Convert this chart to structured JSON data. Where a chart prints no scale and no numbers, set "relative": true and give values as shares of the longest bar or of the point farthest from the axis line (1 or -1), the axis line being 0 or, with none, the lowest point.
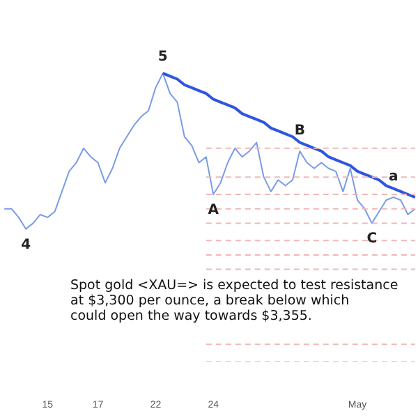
{
  "chart_data": {
    "type": "line",
    "relative": true,
    "categories": [
      null,
      null,
      null,
      null,
      null,
      null,
      "15",
      null,
      null,
      null,
      null,
      null,
      null,
      "17",
      null,
      null,
      null,
      null,
      null,
      null,
      null,
      "22",
      null,
      null,
      null,
      null,
      null,
      null,
      null,
      "24",
      null,
      null,
      null,
      null,
      null,
      null,
      null,
      null,
      null,
      null,
      null,
      null,
      null,
      null,
      null,
      null,
      null,
      null,
      null,
      "May",
      null,
      null,
      null,
      null,
      null,
      null,
      null,
      null
    ],
    "grid": false,
    "marker": "none",
    "series": [
      {
        "color": "#7a9be8",
        "line_style": "solid",
        "values": [
          0.53,
          0.53,
          0.5,
          0.46,
          0.48,
          0.51,
          0.5,
          0.52,
          0.59,
          0.66,
          0.69,
          0.74,
          0.71,
          0.69,
          0.62,
          0.67,
          0.74,
          0.78,
          0.82,
          0.85,
          0.87,
          0.95,
          1,
          0.93,
          0.9,
          0.78,
          0.75,
          0.69,
          0.71,
          0.58,
          0.62,
          0.69,
          0.74,
          0.71,
          0.73,
          0.76,
          0.64,
          0.59,
          0.63,
          0.61,
          0.63,
          0.73,
          0.69,
          0.67,
          0.69,
          0.67,
          0.66,
          0.59,
          0.67,
          0.56,
          0.53,
          0.48,
          0.52,
          0.56,
          0.57,
          0.56,
          0.51,
          0.53
        ]
      },
      {
        "color": "#2f55e0",
        "line_style": "solid",
        "values": [
          null,
          null,
          null,
          null,
          null,
          null,
          null,
          null,
          null,
          null,
          null,
          null,
          null,
          null,
          null,
          null,
          null,
          null,
          null,
          null,
          null,
          null,
          1,
          0.99,
          0.98,
          0.96,
          0.95,
          0.94,
          0.93,
          0.91,
          0.9,
          0.89,
          0.88,
          0.86,
          0.85,
          0.84,
          0.83,
          0.81,
          0.8,
          0.79,
          0.78,
          0.76,
          0.75,
          0.74,
          0.73,
          0.71,
          0.7,
          0.69,
          0.68,
          0.66,
          0.65,
          0.64,
          0.63,
          0.61,
          0.6,
          0.59,
          0.58,
          0.57
        ]
      },
      {
        "color": "#f0b8b8",
        "line_style": "dashed",
        "values": [
          null,
          null,
          null,
          null,
          null,
          null,
          null,
          null,
          null,
          null,
          null,
          null,
          null,
          null,
          null,
          null,
          null,
          null,
          null,
          null,
          null,
          null,
          null,
          null,
          null,
          null,
          null,
          null,
          0.74,
          0.74,
          0.74,
          0.74,
          0.74,
          0.74,
          0.74,
          0.74,
          0.74,
          0.74,
          0.74,
          0.74,
          0.74,
          0.74,
          0.74,
          0.74,
          0.74,
          0.74,
          0.74,
          0.74,
          0.74,
          0.74,
          0.74,
          0.74,
          0.74,
          0.74,
          0.74,
          0.74,
          0.74,
          0.74
        ]
      },
      {
        "color": "#f0b8b8",
        "line_style": "dashed",
        "values": [
          null,
          null,
          null,
          null,
          null,
          null,
          null,
          null,
          null,
          null,
          null,
          null,
          null,
          null,
          null,
          null,
          null,
          null,
          null,
          null,
          null,
          null,
          null,
          null,
          null,
          null,
          null,
          null,
          0.64,
          0.64,
          0.64,
          0.64,
          0.64,
          0.64,
          0.64,
          0.64,
          0.64,
          0.64,
          0.64,
          0.64,
          0.64,
          0.64,
          0.64,
          0.64,
          0.64,
          0.64,
          0.64,
          0.64,
          0.64,
          0.64,
          0.64,
          0.64,
          0.64,
          0.64,
          0.64,
          0.64,
          0.64,
          0.64
        ]
      },
      {
        "color": "#f0b8b8",
        "line_style": "dashed",
        "values": [
          null,
          null,
          null,
          null,
          null,
          null,
          null,
          null,
          null,
          null,
          null,
          null,
          null,
          null,
          null,
          null,
          null,
          null,
          null,
          null,
          null,
          null,
          null,
          null,
          null,
          null,
          null,
          null,
          0.58,
          0.58,
          0.58,
          0.58,
          0.58,
          0.58,
          0.58,
          0.58,
          0.58,
          0.58,
          0.58,
          0.58,
          0.58,
          0.58,
          0.58,
          0.58,
          0.58,
          0.58,
          0.58,
          0.58,
          0.58,
          0.58,
          0.58,
          0.58,
          0.58,
          0.58,
          0.58,
          0.58,
          0.58,
          0.58
        ]
      },
      {
        "color": "#f0b8b8",
        "line_style": "dashed",
        "values": [
          null,
          null,
          null,
          null,
          null,
          null,
          null,
          null,
          null,
          null,
          null,
          null,
          null,
          null,
          null,
          null,
          null,
          null,
          null,
          null,
          null,
          null,
          null,
          null,
          null,
          null,
          null,
          null,
          0.53,
          0.53,
          0.53,
          0.53,
          0.53,
          0.53,
          0.53,
          0.53,
          0.53,
          0.53,
          0.53,
          0.53,
          0.53,
          0.53,
          0.53,
          0.53,
          0.53,
          0.53,
          0.53,
          0.53,
          0.53,
          0.53,
          0.53,
          0.53,
          0.53,
          0.53,
          0.53,
          0.53,
          0.53,
          0.53
        ]
      },
      {
        "color": "#f0b8b8",
        "line_style": "dashed",
        "values": [
          null,
          null,
          null,
          null,
          null,
          null,
          null,
          null,
          null,
          null,
          null,
          null,
          null,
          null,
          null,
          null,
          null,
          null,
          null,
          null,
          null,
          null,
          null,
          null,
          null,
          null,
          null,
          null,
          0.48,
          0.48,
          0.48,
          0.48,
          0.48,
          0.48,
          0.48,
          0.48,
          0.48,
          0.48,
          0.48,
          0.48,
          0.48,
          0.48,
          0.48,
          0.48,
          0.48,
          0.48,
          0.48,
          0.48,
          0.48,
          0.48,
          0.48,
          0.48,
          0.48,
          0.48,
          0.48,
          0.48,
          0.48,
          0.48
        ]
      },
      {
        "color": "#f0b8b8",
        "line_style": "dashed",
        "values": [
          null,
          null,
          null,
          null,
          null,
          null,
          null,
          null,
          null,
          null,
          null,
          null,
          null,
          null,
          null,
          null,
          null,
          null,
          null,
          null,
          null,
          null,
          null,
          null,
          null,
          null,
          null,
          null,
          0.42,
          0.42,
          0.42,
          0.42,
          0.42,
          0.42,
          0.42,
          0.42,
          0.42,
          0.42,
          0.42,
          0.42,
          0.42,
          0.42,
          0.42,
          0.42,
          0.42,
          0.42,
          0.42,
          0.42,
          0.42,
          0.42,
          0.42,
          0.42,
          0.42,
          0.42,
          0.42,
          0.42,
          0.42,
          0.42
        ]
      },
      {
        "color": "#f0b8b8",
        "line_style": "dashed",
        "values": [
          null,
          null,
          null,
          null,
          null,
          null,
          null,
          null,
          null,
          null,
          null,
          null,
          null,
          null,
          null,
          null,
          null,
          null,
          null,
          null,
          null,
          null,
          null,
          null,
          null,
          null,
          null,
          null,
          0.37,
          0.37,
          0.37,
          0.37,
          0.37,
          0.37,
          0.37,
          0.37,
          0.37,
          0.37,
          0.37,
          0.37,
          0.37,
          0.37,
          0.37,
          0.37,
          0.37,
          0.37,
          0.37,
          0.37,
          0.37,
          0.37,
          0.37,
          0.37,
          0.37,
          0.37,
          0.37,
          0.37,
          0.37,
          0.37
        ]
      },
      {
        "color": "#f0b8b8",
        "line_style": "dashed",
        "values": [
          null,
          null,
          null,
          null,
          null,
          null,
          null,
          null,
          null,
          null,
          null,
          null,
          null,
          null,
          null,
          null,
          null,
          null,
          null,
          null,
          null,
          null,
          null,
          null,
          null,
          null,
          null,
          null,
          0.32,
          0.32,
          0.32,
          0.32,
          0.32,
          0.32,
          0.32,
          0.32,
          0.32,
          0.32,
          0.32,
          0.32,
          0.32,
          0.32,
          0.32,
          0.32,
          0.32,
          0.32,
          0.32,
          0.32,
          0.32,
          0.32,
          0.32,
          0.32,
          0.32,
          0.32,
          0.32,
          0.32,
          0.32,
          0.32
        ]
      },
      {
        "color": "#f0b8b8",
        "line_style": "dashed",
        "values": [
          null,
          null,
          null,
          null,
          null,
          null,
          null,
          null,
          null,
          null,
          null,
          null,
          null,
          null,
          null,
          null,
          null,
          null,
          null,
          null,
          null,
          null,
          null,
          null,
          null,
          null,
          null,
          null,
          0.06,
          0.06,
          0.06,
          0.06,
          0.06,
          0.06,
          0.06,
          0.06,
          0.06,
          0.06,
          0.06,
          0.06,
          0.06,
          0.06,
          0.06,
          0.06,
          0.06,
          0.06,
          0.06,
          0.06,
          0.06,
          0.06,
          0.06,
          0.06,
          0.06,
          0.06,
          0.06,
          0.06,
          0.06,
          0.06
        ]
      },
      {
        "color": "#f0b8b8",
        "line_style": "dashed",
        "values": [
          null,
          null,
          null,
          null,
          null,
          null,
          null,
          null,
          null,
          null,
          null,
          null,
          null,
          null,
          null,
          null,
          null,
          null,
          null,
          null,
          null,
          null,
          null,
          null,
          null,
          null,
          null,
          null,
          0,
          0,
          0,
          0,
          0,
          0,
          0,
          0,
          0,
          0,
          0,
          0,
          0,
          0,
          0,
          0,
          0,
          0,
          0,
          0,
          0,
          0,
          0,
          0,
          0,
          0,
          0,
          0,
          0,
          0
        ]
      }
    ],
    "annotations": [
      {
        "text": "5",
        "y": 1
      },
      {
        "text": "4",
        "y": 0.46
      },
      {
        "text": "A",
        "y": 0.58
      },
      {
        "text": "B",
        "y": 0.73
      },
      {
        "text": "a",
        "y": 0.57
      },
      {
        "text": "C",
        "y": 0.48
      },
      "Spot gold <XAU=> is expected to test resistance\nat $3,300 per ounce, a break below which\ncould open the way towards $3,355."
    ]
  }
}
